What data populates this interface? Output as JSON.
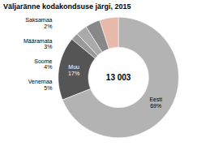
{
  "chart_data": {
    "type": "donut",
    "title": "Väljaränne kodakondsuse järgi, 2015",
    "annotations": [
      "13 003"
    ],
    "categories": [
      "Eesti",
      "Muu",
      "Saksamaa",
      "Määramata",
      "Soome",
      "Venemaa"
    ],
    "values": [
      69,
      17,
      2,
      3,
      4,
      5
    ],
    "value_labels": [
      "69%",
      "17%",
      "2%",
      "3%",
      "4%",
      "5%"
    ],
    "colors": [
      "#b3b3b3",
      "#555555",
      "#999999",
      "#aaaaaa",
      "#888888",
      "#e8b8a8"
    ],
    "data_labels": true
  }
}
